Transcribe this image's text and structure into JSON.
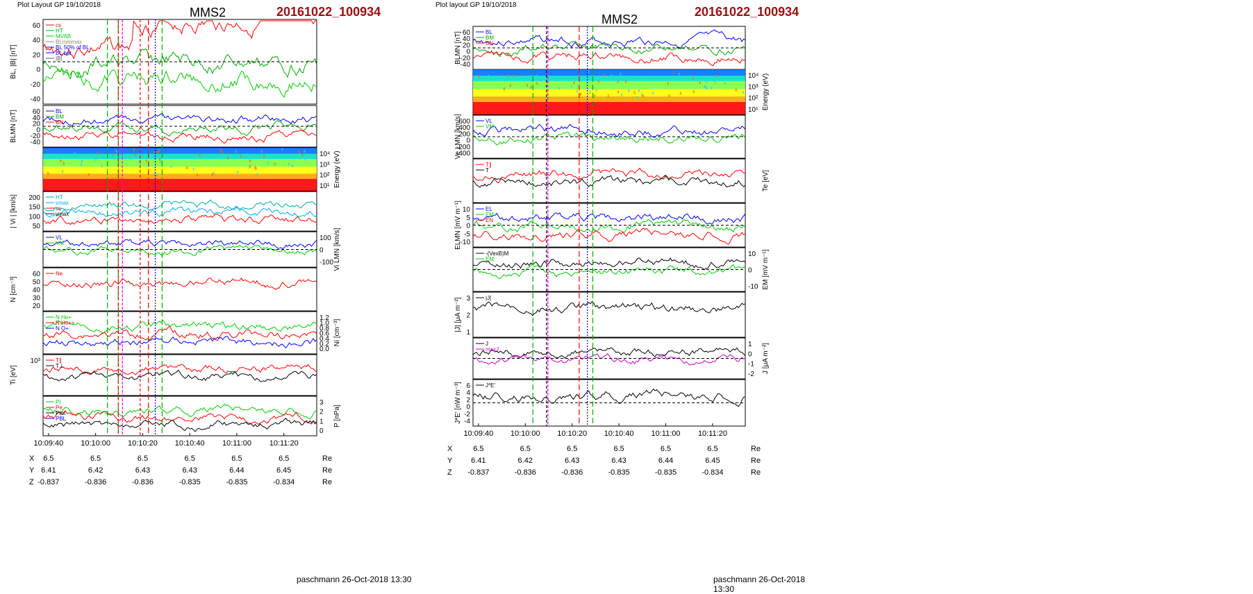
{
  "pages": [
    {
      "header_left": "Plot Layout GP 19/10/2018",
      "spacecraft": "MMS2",
      "event_id": "20161022_100934",
      "footer": "paschmann 26-Oct-2018 13:30",
      "time_ticks": [
        "10:09:40",
        "10:10:00",
        "10:10:20",
        "10:10:40",
        "10:11:00",
        "10:11:20"
      ],
      "ephemeris": [
        {
          "label": "X",
          "values": [
            "6.5",
            "6.5",
            "6.5",
            "6.5",
            "6.5",
            "6.5"
          ],
          "unit": "Re"
        },
        {
          "label": "Y",
          "values": [
            "6.41",
            "6.42",
            "6.43",
            "6.43",
            "6.44",
            "6.45"
          ],
          "unit": "Re"
        },
        {
          "label": "Z",
          "values": [
            "-0.837",
            "-0.836",
            "-0.836",
            "-0.835",
            "-0.835",
            "-0.834"
          ],
          "unit": "Re"
        }
      ],
      "panels": [
        {
          "ylabel": "BL, |B| [nT]",
          "y2label": "",
          "ticks": [
            "60",
            "40",
            "20",
            "0",
            "-20",
            "-40"
          ],
          "ticks2": [],
          "legend": [
            {
              "t": "cs",
              "c": "#ff0000"
            },
            {
              "t": "HT",
              "c": "#00aa00"
            },
            {
              "t": "MVAB",
              "c": "#00cc00"
            },
            {
              "t": "BLminmax",
              "c": "#888888"
            },
            {
              "t": "BL 50% of BL",
              "c": "#0000ff"
            },
            {
              "t": "BL bar",
              "c": "#0000ff"
            },
            {
              "t": "|B|",
              "c": "#555555"
            }
          ]
        },
        {
          "ylabel": "BLMN [nT]",
          "y2label": "",
          "ticks": [
            "60",
            "40",
            "20",
            "0",
            "-20",
            "-40"
          ],
          "ticks2": [],
          "legend": [
            {
              "t": "BL",
              "c": "#0000ff"
            },
            {
              "t": "BM",
              "c": "#00aa00"
            },
            {
              "t": "BN",
              "c": "#ff0000"
            }
          ]
        },
        {
          "ylabel": "",
          "y2label": "Energy (eV)",
          "ticks": [],
          "ticks2": [
            "10⁴",
            "10³",
            "10²",
            "10¹"
          ],
          "legend": []
        },
        {
          "ylabel": "| Vi | [km/s]",
          "y2label": "",
          "ticks": [
            "200",
            "150",
            "100",
            "50"
          ],
          "ticks2": [],
          "legend": [
            {
              "t": "HT",
              "c": "#00aaaa"
            },
            {
              "t": "vmax",
              "c": "#00aaff"
            },
            {
              "t": "cs",
              "c": "#ff0000"
            },
            {
              "t": "vmax",
              "c": "#000000"
            }
          ]
        },
        {
          "ylabel": "",
          "y2label": "Vi LMN [km/s]",
          "ticks": [],
          "ticks2": [
            "100",
            "0",
            "-100"
          ],
          "legend": [
            {
              "t": "VL",
              "c": "#0000ff"
            },
            {
              "t": "VM",
              "c": "#00cc00"
            }
          ]
        },
        {
          "ylabel": "N [cm⁻³]",
          "y2label": "",
          "ticks": [
            "60",
            "50",
            "40",
            "30",
            "20"
          ],
          "ticks2": [],
          "legend": [
            {
              "t": "Ne",
              "c": "#ff0000"
            }
          ]
        },
        {
          "ylabel": "",
          "y2label": "Ni [cm⁻³]",
          "ticks": [],
          "ticks2": [
            "1.2",
            "1.0",
            "0.8",
            "0.6",
            "0.4",
            "0.2",
            "0.0"
          ],
          "legend": [
            {
              "t": "N He+",
              "c": "#00cc00"
            },
            {
              "t": "N He++",
              "c": "#ff0000"
            },
            {
              "t": "N O+",
              "c": "#0000ff"
            }
          ]
        },
        {
          "ylabel": "Ti [eV]",
          "y2label": "",
          "ticks": [
            "10³"
          ],
          "ticks2": [],
          "legend": [
            {
              "t": "T∥",
              "c": "#ff0000"
            },
            {
              "t": "T⊥",
              "c": "#000000"
            }
          ]
        },
        {
          "ylabel": "",
          "y2label": "P [nPa]",
          "ticks": [],
          "ticks2": [
            "3",
            "2",
            "1",
            "0"
          ],
          "legend": [
            {
              "t": "Pi",
              "c": "#00cc00"
            },
            {
              "t": "Pe",
              "c": "#ff0000"
            },
            {
              "t": "Ptot",
              "c": "#000000"
            },
            {
              "t": "PBL",
              "c": "#0000ff"
            }
          ]
        }
      ]
    },
    {
      "header_left": "Plot layout GP 19/10/2018",
      "spacecraft": "MMS2",
      "event_id": "20161022_100934",
      "footer": "paschmann 26-Oct-2018 13:30",
      "time_ticks": [
        "10:09:40",
        "10:10:00",
        "10:10:20",
        "10:10:40",
        "10:11:00",
        "10:11:20"
      ],
      "ephemeris": [
        {
          "label": "X",
          "values": [
            "6.5",
            "6.5",
            "6.5",
            "6.5",
            "6.5",
            "6.5"
          ],
          "unit": "Re"
        },
        {
          "label": "Y",
          "values": [
            "6.41",
            "6.42",
            "6.43",
            "6.43",
            "6.44",
            "6.45"
          ],
          "unit": "Re"
        },
        {
          "label": "Z",
          "values": [
            "-0.837",
            "-0.836",
            "-0.836",
            "-0.835",
            "-0.835",
            "-0.834"
          ],
          "unit": "Re"
        }
      ],
      "panels": [
        {
          "ylabel": "BLMN [nT]",
          "y2label": "",
          "ticks": [
            "60",
            "40",
            "20",
            "0",
            "-20",
            "-40"
          ],
          "ticks2": [],
          "legend": [
            {
              "t": "BL",
              "c": "#0000ff"
            },
            {
              "t": "BM",
              "c": "#00aa00"
            },
            {
              "t": "BN",
              "c": "#ff0000"
            }
          ]
        },
        {
          "ylabel": "",
          "y2label": "Energy (eV)",
          "ticks": [],
          "ticks2": [
            "10⁴",
            "10³",
            "10²",
            "10¹"
          ],
          "legend": []
        },
        {
          "ylabel": "Ve LMN [km/s]",
          "y2label": "",
          "ticks": [
            "600",
            "400",
            "200",
            "0",
            "-200",
            "-400"
          ],
          "ticks2": [],
          "legend": [
            {
              "t": "VL",
              "c": "#0000ff"
            },
            {
              "t": "VM",
              "c": "#00cc00"
            }
          ]
        },
        {
          "ylabel": "",
          "y2label": "Te [eV]",
          "ticks": [],
          "ticks2": [],
          "legend": [
            {
              "t": "T∥",
              "c": "#ff0000"
            },
            {
              "t": "T",
              "c": "#000000"
            }
          ]
        },
        {
          "ylabel": "ELMN [mV m⁻¹]",
          "y2label": "",
          "ticks": [
            "10",
            "5",
            "0",
            "-5",
            "-10"
          ],
          "ticks2": [],
          "legend": [
            {
              "t": "EL",
              "c": "#0000ff"
            },
            {
              "t": "EM",
              "c": "#00cc00"
            },
            {
              "t": "EN",
              "c": "#ff0000"
            }
          ]
        },
        {
          "ylabel": "",
          "y2label": "EM [mV m⁻¹]",
          "ticks": [],
          "ticks2": [
            "10",
            "0",
            "-10"
          ],
          "legend": [
            {
              "t": "-(VexB)M",
              "c": "#000000"
            },
            {
              "t": "EM",
              "c": "#00cc00"
            }
          ]
        },
        {
          "ylabel": "|J| [μA m⁻²]",
          "y2label": "",
          "ticks": [
            "3",
            "2",
            "1"
          ],
          "ticks2": [],
          "legend": [
            {
              "t": "|J|",
              "c": "#000000"
            }
          ]
        },
        {
          "ylabel": "",
          "y2label": "J [μA m⁻²]",
          "ticks": [],
          "ticks2": [
            "1",
            "0",
            "-1",
            "-2"
          ],
          "legend": [
            {
              "t": "J",
              "c": "#000000"
            },
            {
              "t": "maxJ",
              "c": "#cc00cc"
            }
          ]
        },
        {
          "ylabel": "J*E' [nW m⁻³]",
          "y2label": "",
          "ticks": [
            "6",
            "4",
            "2",
            "0",
            "-2",
            "-4"
          ],
          "ticks2": [],
          "legend": [
            {
              "t": "J*E'",
              "c": "#000000"
            }
          ]
        }
      ]
    }
  ]
}
